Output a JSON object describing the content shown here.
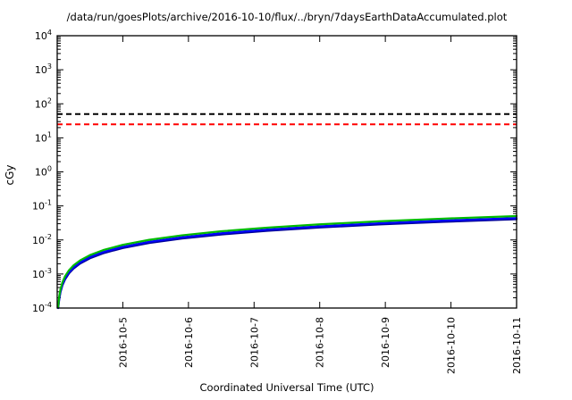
{
  "chart_data": {
    "type": "line",
    "title": "/data/run/goesPlots/archive/2016-10-10/flux/../bryn/7daysEarthDataAccumulated.plot",
    "xlabel": "Coordinated Universal Time (UTC)",
    "ylabel": "cGy",
    "y_scale": "log10",
    "y_log_range": [
      -4,
      4
    ],
    "y_tick_exponents": [
      4,
      3,
      2,
      1,
      0,
      -1,
      -2,
      -3,
      -4
    ],
    "x_range": [
      0,
      7
    ],
    "x_origin_date": "2016-10-4",
    "x_ticks": [
      {
        "t": 1,
        "label": "2016-10-5"
      },
      {
        "t": 2,
        "label": "2016-10-6"
      },
      {
        "t": 3,
        "label": "2016-10-7"
      },
      {
        "t": 4,
        "label": "2016-10-8"
      },
      {
        "t": 5,
        "label": "2016-10-9"
      },
      {
        "t": 6,
        "label": "2016-10-10"
      },
      {
        "t": 7,
        "label": "2016-10-11"
      }
    ],
    "grid": false,
    "legend": "none",
    "thresholds": [
      {
        "name": "black-dashed",
        "value": 50,
        "color": "#000000"
      },
      {
        "name": "red-dashed",
        "value": 25,
        "color": "#ff0000"
      }
    ],
    "series": [
      {
        "name": "navy",
        "color": "#000099",
        "x": [
          0.015,
          0.03,
          0.05,
          0.08,
          0.12,
          0.18,
          0.25,
          0.35,
          0.5,
          0.7,
          1.0,
          1.4,
          1.9,
          2.5,
          3.2,
          4.0,
          4.9,
          5.9,
          7.0
        ],
        "values": [
          0.0001,
          0.000174,
          0.00029,
          0.000464,
          0.000696,
          0.001044,
          0.00145,
          0.00203,
          0.0029,
          0.00406,
          0.0058,
          0.00812,
          0.01102,
          0.0145,
          0.01856,
          0.0232,
          0.02842,
          0.03422,
          0.0406
        ]
      },
      {
        "name": "blue",
        "color": "#0000ff",
        "x": [
          0.015,
          0.03,
          0.05,
          0.08,
          0.12,
          0.18,
          0.25,
          0.35,
          0.5,
          0.7,
          1.0,
          1.4,
          1.9,
          2.5,
          3.2,
          4.0,
          4.9,
          5.9,
          7.0
        ],
        "values": [
          0.0001,
          0.000189,
          0.000315,
          0.000504,
          0.000756,
          0.001134,
          0.001575,
          0.002205,
          0.00315,
          0.00441,
          0.0063,
          0.00882,
          0.01197,
          0.01575,
          0.02016,
          0.0252,
          0.03087,
          0.03717,
          0.0441
        ]
      },
      {
        "name": "green",
        "color": "#00bb00",
        "x": [
          0.015,
          0.03,
          0.05,
          0.08,
          0.12,
          0.18,
          0.25,
          0.35,
          0.5,
          0.7,
          1.0,
          1.4,
          1.9,
          2.5,
          3.2,
          4.0,
          4.9,
          5.9,
          7.0
        ],
        "values": [
          0.000108,
          0.000216,
          0.00036,
          0.000576,
          0.000864,
          0.001296,
          0.0018,
          0.00252,
          0.0036,
          0.00504,
          0.0072,
          0.01008,
          0.01368,
          0.018,
          0.02304,
          0.0288,
          0.03528,
          0.04248,
          0.0504
        ]
      }
    ]
  }
}
